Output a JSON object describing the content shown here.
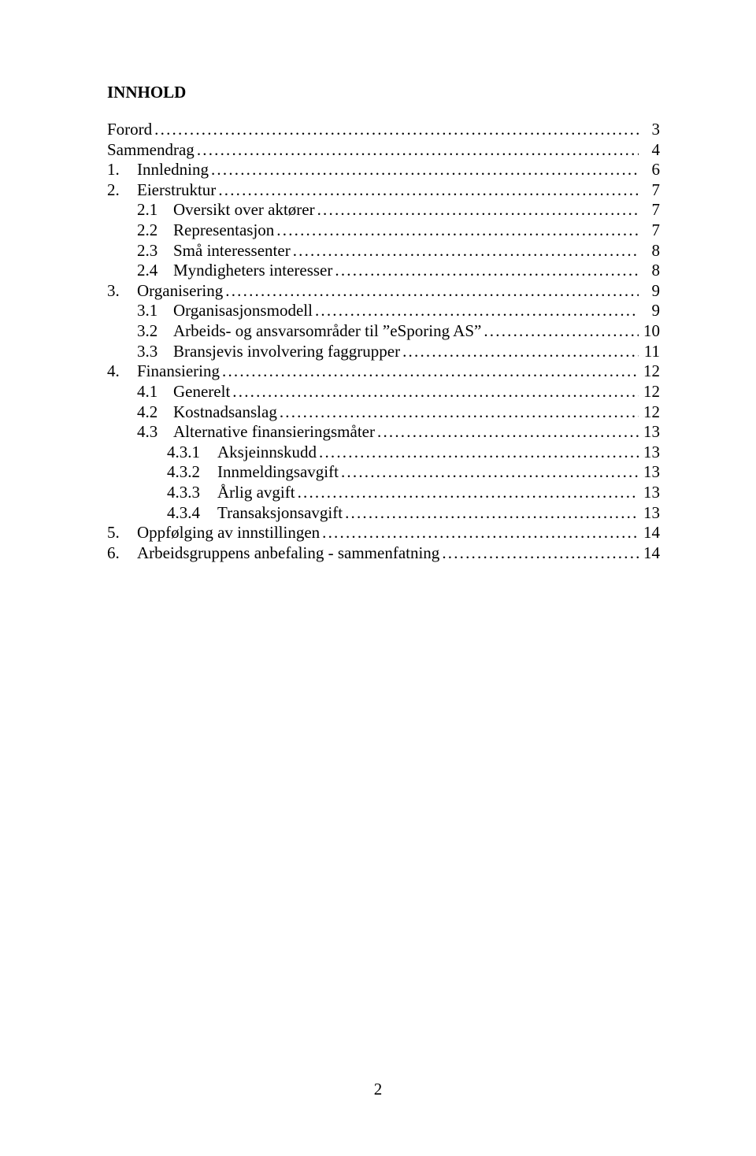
{
  "heading": "INNHOLD",
  "page_number": "2",
  "toc": [
    {
      "indent": 0,
      "num": "",
      "title": "Forord",
      "page": "3"
    },
    {
      "indent": 0,
      "num": "",
      "title": "Sammendrag",
      "page": "4"
    },
    {
      "indent": 0,
      "num": "1.",
      "title": "Innledning",
      "page": "6"
    },
    {
      "indent": 0,
      "num": "2.",
      "title": "Eierstruktur",
      "page": "7"
    },
    {
      "indent": 1,
      "num": "2.1",
      "title": "Oversikt over aktører",
      "page": "7"
    },
    {
      "indent": 1,
      "num": "2.2",
      "title": "Representasjon",
      "page": "7"
    },
    {
      "indent": 1,
      "num": "2.3",
      "title": "Små interessenter",
      "page": "8"
    },
    {
      "indent": 1,
      "num": "2.4",
      "title": "Myndigheters interesser",
      "page": "8"
    },
    {
      "indent": 0,
      "num": "3.",
      "title": "Organisering",
      "page": "9"
    },
    {
      "indent": 1,
      "num": "3.1",
      "title": "Organisasjonsmodell",
      "page": "9"
    },
    {
      "indent": 1,
      "num": "3.2",
      "title": "Arbeids- og ansvarsområder til ”eSporing AS”",
      "page": "10"
    },
    {
      "indent": 1,
      "num": "3.3",
      "title": "Bransjevis involvering faggrupper",
      "page": "11"
    },
    {
      "indent": 0,
      "num": "4.",
      "title": "Finansiering",
      "page": "12"
    },
    {
      "indent": 1,
      "num": "4.1",
      "title": "Generelt",
      "page": "12"
    },
    {
      "indent": 1,
      "num": "4.2",
      "title": "Kostnadsanslag",
      "page": "12"
    },
    {
      "indent": 1,
      "num": "4.3",
      "title": "Alternative finansieringsmåter",
      "page": "13"
    },
    {
      "indent": 2,
      "num": "4.3.1",
      "title": "Aksjeinnskudd",
      "page": "13"
    },
    {
      "indent": 2,
      "num": "4.3.2",
      "title": "Innmeldingsavgift",
      "page": "13"
    },
    {
      "indent": 2,
      "num": "4.3.3",
      "title": "Årlig avgift",
      "page": "13"
    },
    {
      "indent": 2,
      "num": "4.3.4",
      "title": "Transaksjonsavgift",
      "page": "13"
    },
    {
      "indent": 0,
      "num": "5.",
      "title": "Oppfølging av innstillingen",
      "page": "14"
    },
    {
      "indent": 0,
      "num": "6.",
      "title": "Arbeidsgruppens anbefaling - sammenfatning",
      "page": "14"
    }
  ]
}
